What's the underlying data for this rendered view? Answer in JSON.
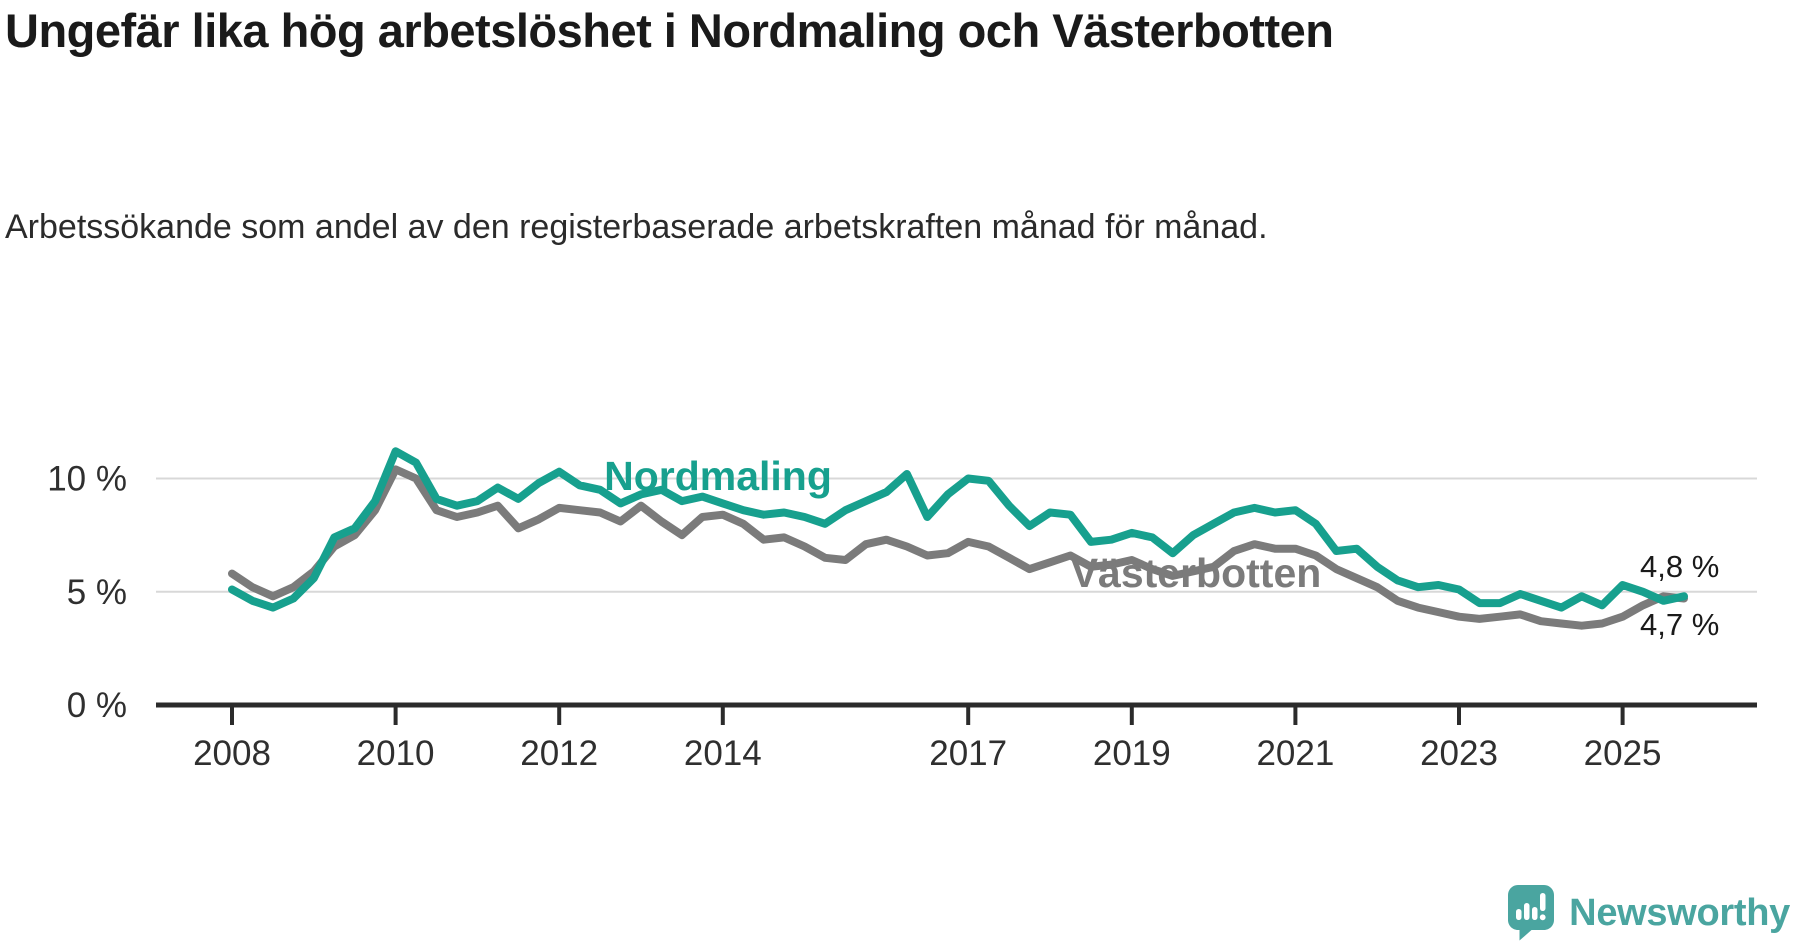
{
  "title": "Ungefär lika hög arbetslöshet i Nordmaling och Västerbotten",
  "subtitle": "Arbetssökande som andel av den registerbaserade arbetskraften månad för månad.",
  "branding": {
    "logo_text": "Newsworthy",
    "logo_color": "#4aa5a0"
  },
  "colors": {
    "title": "#1a1a1a",
    "axis": "#2b2b2b",
    "gridline": "#d8d8d8",
    "tick_label": "#2f2f2f",
    "end_label": "#1a1a1a",
    "nordmaling": "#17a08e",
    "vasterbotten": "#7b7b7b"
  },
  "chart_data": {
    "type": "line",
    "title": "",
    "xlabel": "",
    "ylabel": "",
    "unit": "%",
    "grid": "horizontal",
    "legend_position": "inline-labels",
    "xlim": [
      2008.0,
      2025.75
    ],
    "ylim": [
      0,
      13
    ],
    "xticks": [
      "2008",
      "2010",
      "2012",
      "2014",
      "2017",
      "2019",
      "2021",
      "2023",
      "2025"
    ],
    "xtick_years": [
      2008,
      2010,
      2012,
      2014,
      2017,
      2019,
      2021,
      2023,
      2025
    ],
    "yticks": [
      {
        "value": 0,
        "label": "0 %"
      },
      {
        "value": 5,
        "label": "5 %"
      },
      {
        "value": 10,
        "label": "10 %"
      }
    ],
    "x": [
      2008.0,
      2008.25,
      2008.5,
      2008.75,
      2009.0,
      2009.25,
      2009.5,
      2009.75,
      2010.0,
      2010.25,
      2010.5,
      2010.75,
      2011.0,
      2011.25,
      2011.5,
      2011.75,
      2012.0,
      2012.25,
      2012.5,
      2012.75,
      2013.0,
      2013.25,
      2013.5,
      2013.75,
      2014.0,
      2014.25,
      2014.5,
      2014.75,
      2015.0,
      2015.25,
      2015.5,
      2015.75,
      2016.0,
      2016.25,
      2016.5,
      2016.75,
      2017.0,
      2017.25,
      2017.5,
      2017.75,
      2018.0,
      2018.25,
      2018.5,
      2018.75,
      2019.0,
      2019.25,
      2019.5,
      2019.75,
      2020.0,
      2020.25,
      2020.5,
      2020.75,
      2021.0,
      2021.25,
      2021.5,
      2021.75,
      2022.0,
      2022.25,
      2022.5,
      2022.75,
      2023.0,
      2023.25,
      2023.5,
      2023.75,
      2024.0,
      2024.25,
      2024.5,
      2024.75,
      2025.0,
      2025.25,
      2025.5,
      2025.75
    ],
    "series": [
      {
        "name": "Nordmaling",
        "end_label": "4,8 %",
        "last_value_pct": 4.8,
        "values": [
          5.1,
          4.6,
          4.3,
          4.7,
          5.6,
          7.4,
          7.8,
          9.0,
          11.2,
          10.7,
          9.1,
          8.8,
          9.0,
          9.6,
          9.1,
          9.8,
          10.3,
          9.7,
          9.5,
          8.9,
          9.3,
          9.5,
          9.0,
          9.2,
          8.9,
          8.6,
          8.4,
          8.5,
          8.3,
          8.0,
          8.6,
          9.0,
          9.4,
          10.2,
          8.3,
          9.3,
          10.0,
          9.9,
          8.8,
          7.9,
          8.5,
          8.4,
          7.2,
          7.3,
          7.6,
          7.4,
          6.7,
          7.5,
          8.0,
          8.5,
          8.7,
          8.5,
          8.6,
          8.0,
          6.8,
          6.9,
          6.1,
          5.5,
          5.2,
          5.3,
          5.1,
          4.5,
          4.5,
          4.9,
          4.6,
          4.3,
          4.8,
          4.4,
          5.3,
          5.0,
          4.6,
          4.8
        ]
      },
      {
        "name": "Västerbotten",
        "end_label": "4,7 %",
        "last_value_pct": 4.7,
        "values": [
          5.8,
          5.2,
          4.8,
          5.2,
          5.9,
          7.0,
          7.5,
          8.6,
          10.4,
          10.0,
          8.6,
          8.3,
          8.5,
          8.8,
          7.8,
          8.2,
          8.7,
          8.6,
          8.5,
          8.1,
          8.8,
          8.1,
          7.5,
          8.3,
          8.4,
          8.0,
          7.3,
          7.4,
          7.0,
          6.5,
          6.4,
          7.1,
          7.3,
          7.0,
          6.6,
          6.7,
          7.2,
          7.0,
          6.5,
          6.0,
          6.3,
          6.6,
          6.1,
          6.2,
          6.4,
          6.0,
          5.7,
          5.9,
          6.1,
          6.8,
          7.1,
          6.9,
          6.9,
          6.6,
          6.0,
          5.6,
          5.2,
          4.6,
          4.3,
          4.1,
          3.9,
          3.8,
          3.9,
          4.0,
          3.7,
          3.6,
          3.5,
          3.6,
          3.9,
          4.4,
          4.8,
          4.7
        ]
      }
    ]
  }
}
